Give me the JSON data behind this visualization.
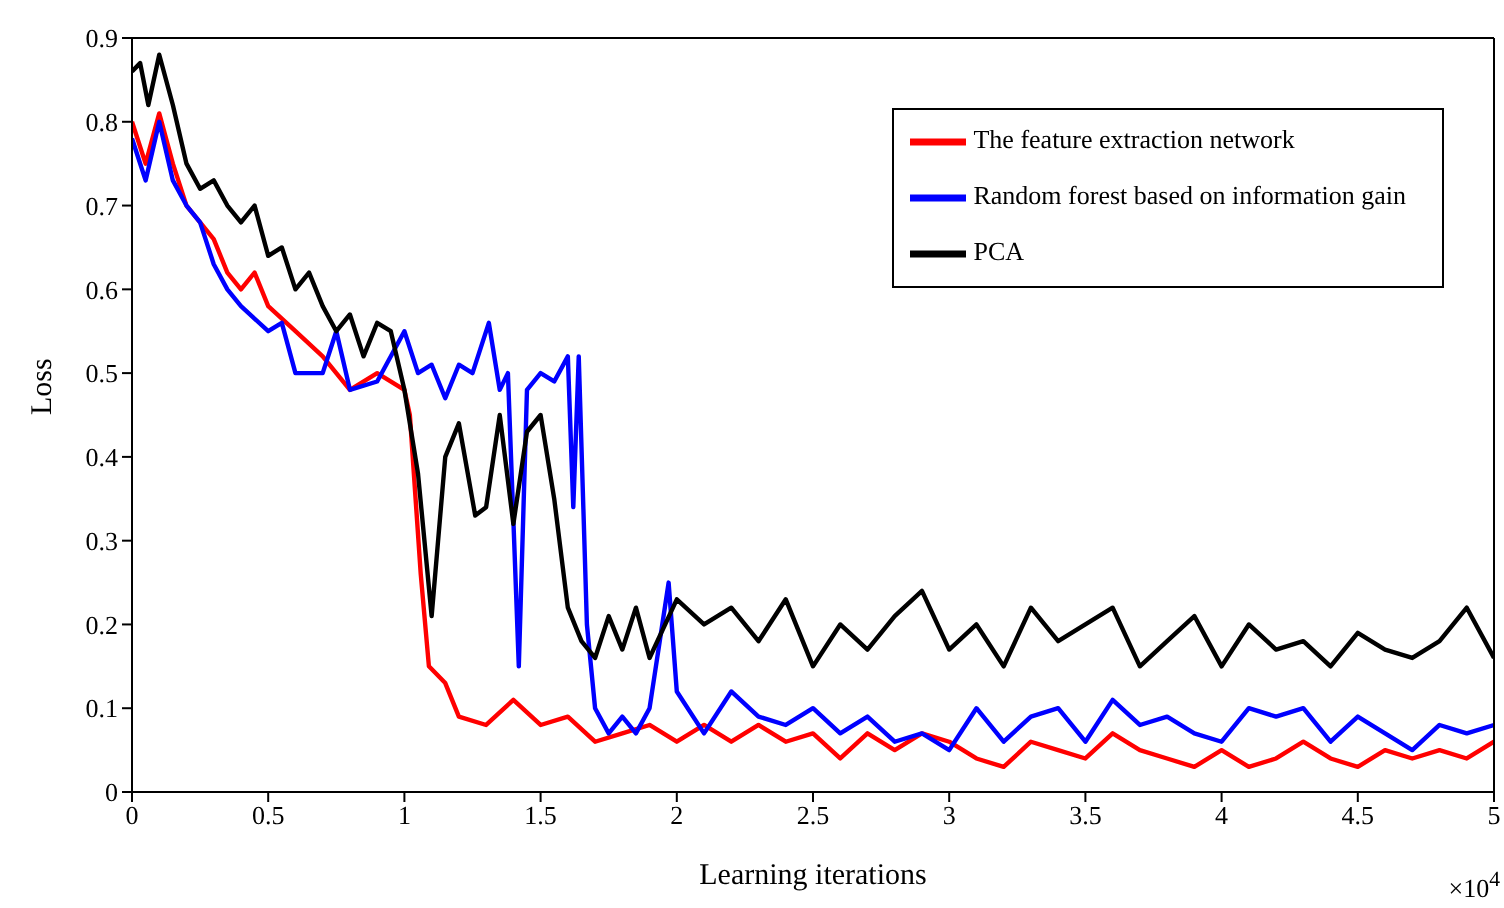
{
  "chart_data": {
    "type": "line",
    "xlabel": "Learning iterations",
    "ylabel": "Loss",
    "annotations": [
      "×10$^{4}$"
    ],
    "xlim": [
      0,
      5
    ],
    "xticks": [
      0,
      0.5,
      1,
      1.5,
      2,
      2.5,
      3,
      3.5,
      4,
      4.5,
      5
    ],
    "ylim": [
      0,
      0.9
    ],
    "yticks": [
      0,
      0.1,
      0.2,
      0.3,
      0.4,
      0.5,
      0.6,
      0.7,
      0.8,
      0.9
    ],
    "grid": false,
    "legend": "top right",
    "marker": "none",
    "line_style": "solid",
    "series": [
      {
        "name": "The feature extraction network",
        "color": "#ff0000",
        "x": [
          0,
          0.05,
          0.1,
          0.15,
          0.2,
          0.25,
          0.3,
          0.35,
          0.4,
          0.45,
          0.5,
          0.6,
          0.7,
          0.8,
          0.9,
          1.0,
          1.02,
          1.06,
          1.09,
          1.15,
          1.2,
          1.3,
          1.4,
          1.5,
          1.6,
          1.7,
          1.8,
          1.9,
          2.0,
          2.1,
          2.2,
          2.3,
          2.4,
          2.5,
          2.6,
          2.7,
          2.8,
          2.9,
          3.0,
          3.1,
          3.2,
          3.3,
          3.4,
          3.5,
          3.6,
          3.7,
          3.8,
          3.9,
          4.0,
          4.1,
          4.2,
          4.3,
          4.4,
          4.5,
          4.6,
          4.7,
          4.8,
          4.9,
          5.0
        ],
        "values": [
          0.8,
          0.75,
          0.81,
          0.75,
          0.7,
          0.68,
          0.66,
          0.62,
          0.6,
          0.62,
          0.58,
          0.55,
          0.52,
          0.48,
          0.5,
          0.48,
          0.45,
          0.26,
          0.15,
          0.13,
          0.09,
          0.08,
          0.11,
          0.08,
          0.09,
          0.06,
          0.07,
          0.08,
          0.06,
          0.08,
          0.06,
          0.08,
          0.06,
          0.07,
          0.04,
          0.07,
          0.05,
          0.07,
          0.06,
          0.04,
          0.03,
          0.06,
          0.05,
          0.04,
          0.07,
          0.05,
          0.04,
          0.03,
          0.05,
          0.03,
          0.04,
          0.06,
          0.04,
          0.03,
          0.05,
          0.04,
          0.05,
          0.04,
          0.06
        ]
      },
      {
        "name": "Random forest based on information gain",
        "color": "#0000ff",
        "x": [
          0,
          0.05,
          0.1,
          0.15,
          0.2,
          0.25,
          0.3,
          0.35,
          0.4,
          0.5,
          0.55,
          0.6,
          0.7,
          0.75,
          0.8,
          0.9,
          1.0,
          1.05,
          1.1,
          1.15,
          1.2,
          1.25,
          1.31,
          1.35,
          1.38,
          1.42,
          1.45,
          1.5,
          1.55,
          1.6,
          1.62,
          1.64,
          1.67,
          1.7,
          1.75,
          1.8,
          1.85,
          1.9,
          1.97,
          2.0,
          2.1,
          2.2,
          2.3,
          2.4,
          2.5,
          2.6,
          2.7,
          2.8,
          2.9,
          3.0,
          3.1,
          3.2,
          3.3,
          3.4,
          3.5,
          3.6,
          3.7,
          3.8,
          3.9,
          4.0,
          4.1,
          4.2,
          4.3,
          4.4,
          4.5,
          4.6,
          4.7,
          4.8,
          4.9,
          5.0
        ],
        "values": [
          0.78,
          0.73,
          0.8,
          0.73,
          0.7,
          0.68,
          0.63,
          0.6,
          0.58,
          0.55,
          0.56,
          0.5,
          0.5,
          0.55,
          0.48,
          0.49,
          0.55,
          0.5,
          0.51,
          0.47,
          0.51,
          0.5,
          0.56,
          0.48,
          0.5,
          0.15,
          0.48,
          0.5,
          0.49,
          0.52,
          0.34,
          0.52,
          0.2,
          0.1,
          0.07,
          0.09,
          0.07,
          0.1,
          0.25,
          0.12,
          0.07,
          0.12,
          0.09,
          0.08,
          0.1,
          0.07,
          0.09,
          0.06,
          0.07,
          0.05,
          0.1,
          0.06,
          0.09,
          0.1,
          0.06,
          0.11,
          0.08,
          0.09,
          0.07,
          0.06,
          0.1,
          0.09,
          0.1,
          0.06,
          0.09,
          0.07,
          0.05,
          0.08,
          0.07,
          0.08
        ]
      },
      {
        "name": "PCA",
        "color": "#000000",
        "x": [
          0,
          0.03,
          0.06,
          0.1,
          0.15,
          0.2,
          0.25,
          0.3,
          0.35,
          0.4,
          0.45,
          0.5,
          0.55,
          0.6,
          0.65,
          0.7,
          0.75,
          0.8,
          0.85,
          0.9,
          0.95,
          1.0,
          1.05,
          1.1,
          1.15,
          1.2,
          1.26,
          1.3,
          1.35,
          1.4,
          1.45,
          1.5,
          1.55,
          1.6,
          1.65,
          1.7,
          1.75,
          1.8,
          1.85,
          1.9,
          2.0,
          2.1,
          2.2,
          2.3,
          2.4,
          2.5,
          2.6,
          2.7,
          2.8,
          2.9,
          3.0,
          3.1,
          3.2,
          3.3,
          3.4,
          3.5,
          3.6,
          3.7,
          3.8,
          3.9,
          4.0,
          4.1,
          4.2,
          4.3,
          4.4,
          4.5,
          4.6,
          4.7,
          4.8,
          4.9,
          5.0
        ],
        "values": [
          0.86,
          0.87,
          0.82,
          0.88,
          0.82,
          0.75,
          0.72,
          0.73,
          0.7,
          0.68,
          0.7,
          0.64,
          0.65,
          0.6,
          0.62,
          0.58,
          0.55,
          0.57,
          0.52,
          0.56,
          0.55,
          0.48,
          0.38,
          0.21,
          0.4,
          0.44,
          0.33,
          0.34,
          0.45,
          0.32,
          0.43,
          0.45,
          0.35,
          0.22,
          0.18,
          0.16,
          0.21,
          0.17,
          0.22,
          0.16,
          0.23,
          0.2,
          0.22,
          0.18,
          0.23,
          0.15,
          0.2,
          0.17,
          0.21,
          0.24,
          0.17,
          0.2,
          0.15,
          0.22,
          0.18,
          0.2,
          0.22,
          0.15,
          0.18,
          0.21,
          0.15,
          0.2,
          0.17,
          0.18,
          0.15,
          0.19,
          0.17,
          0.16,
          0.18,
          0.22,
          0.16
        ]
      }
    ]
  }
}
